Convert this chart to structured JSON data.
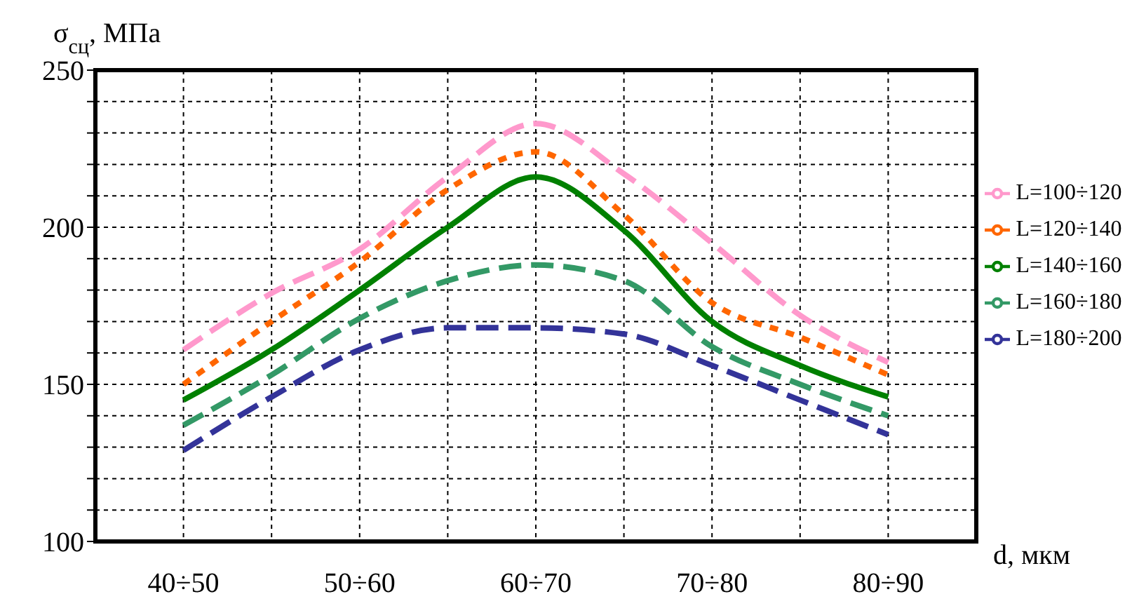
{
  "chart_data": {
    "type": "line",
    "xlabel": "d, мкм",
    "ylabel": "σ$_{сц}$, МПа",
    "categories": [
      "40÷50",
      null,
      "50÷60",
      null,
      "60÷70",
      null,
      "70÷80",
      null,
      "80÷90"
    ],
    "series": [
      {
        "name": "L=100÷120",
        "color": "#ff99cc",
        "line_style": "dashed",
        "values": [
          161,
          179,
          193,
          216,
          233,
          217,
          195,
          172,
          157
        ]
      },
      {
        "name": "L=120÷140",
        "color": "#ff6600",
        "line_style": "dotted",
        "values": [
          150,
          170,
          189,
          212,
          224,
          204,
          176,
          165,
          153
        ]
      },
      {
        "name": "L=140÷160",
        "color": "#008000",
        "line_style": "solid",
        "values": [
          145,
          161,
          180,
          200,
          216,
          199,
          170,
          156,
          146
        ]
      },
      {
        "name": "L=160÷180",
        "color": "#339966",
        "line_style": "dashed",
        "values": [
          137,
          153,
          171,
          183,
          188,
          183,
          162,
          150,
          140
        ]
      },
      {
        "name": "L=180÷200",
        "color": "#333399",
        "line_style": "dashed",
        "values": [
          129,
          146,
          161,
          168,
          168,
          166,
          156,
          145,
          134
        ]
      }
    ],
    "ylim": [
      100,
      250
    ],
    "yticks": [
      100,
      {
        "value": 110,
        "label": null
      },
      {
        "value": 120,
        "label": null
      },
      {
        "value": 130,
        "label": null
      },
      {
        "value": 140,
        "label": null
      },
      150,
      {
        "value": 160,
        "label": null
      },
      {
        "value": 170,
        "label": null
      },
      {
        "value": 180,
        "label": null
      },
      {
        "value": 190,
        "label": null
      },
      200,
      {
        "value": 210,
        "label": null
      },
      {
        "value": 220,
        "label": null
      },
      {
        "value": 230,
        "label": null
      },
      {
        "value": 240,
        "label": null
      },
      250
    ],
    "grid": true,
    "legend": "right",
    "marker": "none"
  }
}
